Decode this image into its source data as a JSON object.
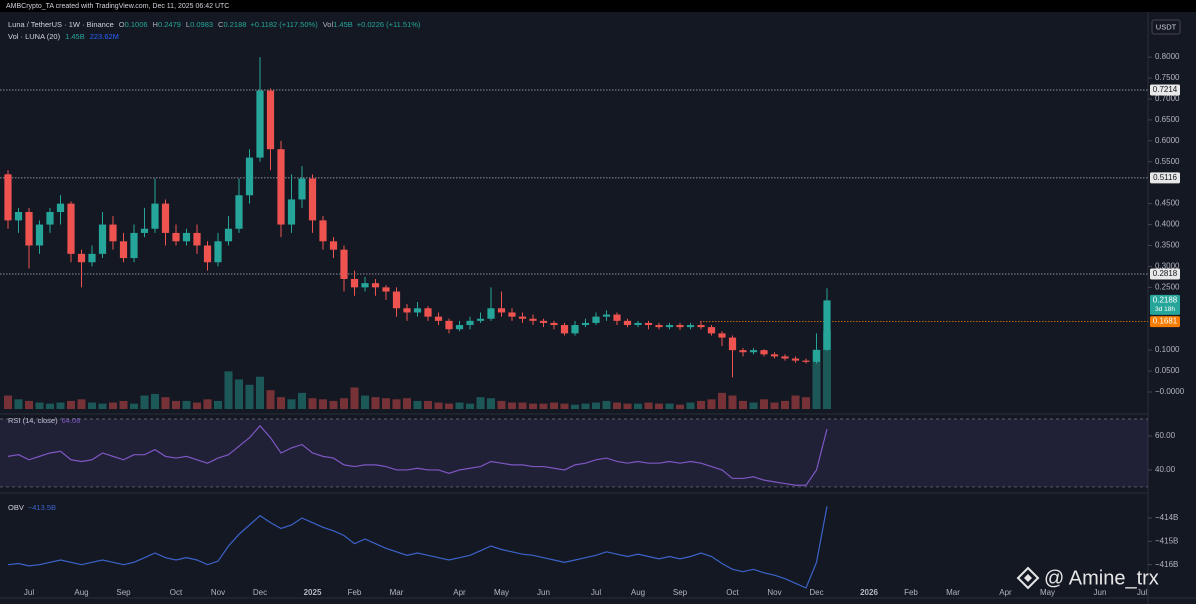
{
  "header": {
    "credit": "AMBCrypto_TA created with TradingView.com, Dec 11, 2025 06:42 UTC",
    "symbol": "Luna / TetherUS · 1W · Binance",
    "ohlc_labels": [
      "O",
      "H",
      "L",
      "C"
    ],
    "change": "+0.1182 (+117.50%)",
    "vol_label": "Vol",
    "vol_change": "+0.0226 (+11.51%)",
    "watermark": "@ Amine_trx"
  },
  "chart_data": [
    {
      "type": "candlestick",
      "currency": "USDT",
      "up_color": "#26a69a",
      "down_color": "#ef5350",
      "categories": [
        null,
        null,
        "Jul",
        null,
        null,
        null,
        null,
        "Aug",
        null,
        null,
        null,
        "Sep",
        null,
        null,
        null,
        null,
        "Oct",
        null,
        null,
        null,
        "Nov",
        null,
        null,
        null,
        "Dec",
        null,
        null,
        null,
        null,
        "2025",
        null,
        null,
        null,
        "Feb",
        null,
        null,
        null,
        "Mar",
        null,
        null,
        null,
        null,
        null,
        "Apr",
        null,
        null,
        null,
        "May",
        null,
        null,
        null,
        "Jun",
        null,
        null,
        null,
        null,
        "Jul",
        null,
        null,
        null,
        "Aug",
        null,
        null,
        null,
        "Sep",
        null,
        null,
        null,
        null,
        "Oct",
        null,
        null,
        null,
        "Nov",
        null,
        null,
        null,
        "Dec",
        null,
        null,
        null,
        null,
        "2026",
        null,
        null,
        null,
        "Feb",
        null,
        null,
        null,
        "Mar",
        null,
        null,
        null,
        null,
        "Apr",
        null,
        null,
        null,
        "May",
        null,
        null,
        null,
        null,
        "Jun",
        null,
        null,
        null,
        "Jul"
      ],
      "open": [
        0.52,
        0.41,
        0.43,
        0.35,
        0.4,
        0.43,
        0.45,
        0.33,
        0.31,
        0.33,
        0.4,
        0.36,
        0.32,
        0.38,
        0.39,
        0.45,
        0.38,
        0.36,
        0.38,
        0.35,
        0.31,
        0.36,
        0.39,
        0.47,
        0.56,
        0.72,
        0.58,
        0.4,
        0.46,
        0.51,
        0.41,
        0.36,
        0.34,
        0.27,
        0.25,
        0.26,
        0.25,
        0.24,
        0.2,
        0.19,
        0.2,
        0.18,
        0.17,
        0.15,
        0.16,
        0.17,
        0.175,
        0.2,
        0.19,
        0.18,
        0.175,
        0.17,
        0.165,
        0.16,
        0.14,
        0.16,
        0.165,
        0.18,
        0.185,
        0.17,
        0.16,
        0.165,
        0.16,
        0.155,
        0.16,
        0.155,
        0.16,
        0.155,
        0.14,
        0.13,
        0.1,
        0.095,
        0.1,
        0.09,
        0.085,
        0.08,
        0.075,
        0.072,
        0.1006,
        null,
        null,
        null,
        null,
        null,
        null,
        null,
        null,
        null,
        null,
        null,
        null,
        null,
        null,
        null,
        null,
        null,
        null,
        null,
        null,
        null,
        null,
        null,
        null,
        null,
        null,
        null,
        null,
        null,
        null
      ],
      "high": [
        0.53,
        0.44,
        0.44,
        0.41,
        0.44,
        0.47,
        0.455,
        0.34,
        0.35,
        0.43,
        0.42,
        0.38,
        0.4,
        0.44,
        0.51,
        0.46,
        0.4,
        0.39,
        0.4,
        0.36,
        0.38,
        0.42,
        0.51,
        0.58,
        0.8,
        0.725,
        0.6,
        0.52,
        0.54,
        0.52,
        0.42,
        0.37,
        0.35,
        0.29,
        0.275,
        0.27,
        0.255,
        0.25,
        0.21,
        0.215,
        0.205,
        0.19,
        0.175,
        0.17,
        0.18,
        0.19,
        0.25,
        0.24,
        0.2,
        0.19,
        0.185,
        0.175,
        0.17,
        0.165,
        0.17,
        0.175,
        0.19,
        0.195,
        0.19,
        0.175,
        0.17,
        0.17,
        0.165,
        0.165,
        0.165,
        0.165,
        0.17,
        0.16,
        0.145,
        0.135,
        0.105,
        0.105,
        0.102,
        0.095,
        0.09,
        0.085,
        0.08,
        0.14,
        0.2479,
        null,
        null,
        null,
        null,
        null,
        null,
        null,
        null,
        null,
        null,
        null,
        null,
        null,
        null,
        null,
        null,
        null,
        null,
        null,
        null,
        null,
        null,
        null,
        null,
        null,
        null,
        null,
        null,
        null,
        null
      ],
      "low": [
        0.39,
        0.38,
        0.295,
        0.33,
        0.38,
        0.4,
        0.31,
        0.25,
        0.3,
        0.32,
        0.34,
        0.31,
        0.31,
        0.37,
        0.38,
        0.35,
        0.35,
        0.35,
        0.33,
        0.29,
        0.3,
        0.35,
        0.38,
        0.45,
        0.55,
        0.53,
        0.37,
        0.38,
        0.44,
        0.38,
        0.34,
        0.32,
        0.24,
        0.23,
        0.24,
        0.23,
        0.22,
        0.18,
        0.17,
        0.18,
        0.17,
        0.16,
        0.14,
        0.145,
        0.15,
        0.165,
        0.17,
        0.18,
        0.17,
        0.165,
        0.16,
        0.155,
        0.15,
        0.135,
        0.135,
        0.155,
        0.16,
        0.17,
        0.16,
        0.155,
        0.155,
        0.15,
        0.15,
        0.15,
        0.148,
        0.15,
        0.15,
        0.135,
        0.11,
        0.035,
        0.085,
        0.09,
        0.085,
        0.08,
        0.075,
        0.07,
        0.068,
        0.068,
        0.0983,
        null,
        null,
        null,
        null,
        null,
        null,
        null,
        null,
        null,
        null,
        null,
        null,
        null,
        null,
        null,
        null,
        null,
        null,
        null,
        null,
        null,
        null,
        null,
        null,
        null,
        null,
        null,
        null,
        null,
        null
      ],
      "close": [
        0.41,
        0.43,
        0.35,
        0.4,
        0.43,
        0.45,
        0.33,
        0.31,
        0.33,
        0.4,
        0.36,
        0.32,
        0.38,
        0.39,
        0.45,
        0.38,
        0.36,
        0.38,
        0.35,
        0.31,
        0.36,
        0.39,
        0.47,
        0.56,
        0.72,
        0.58,
        0.4,
        0.46,
        0.51,
        0.41,
        0.36,
        0.34,
        0.27,
        0.25,
        0.26,
        0.25,
        0.24,
        0.2,
        0.19,
        0.2,
        0.18,
        0.17,
        0.15,
        0.16,
        0.17,
        0.175,
        0.2,
        0.19,
        0.18,
        0.175,
        0.17,
        0.165,
        0.16,
        0.14,
        0.16,
        0.165,
        0.18,
        0.185,
        0.17,
        0.16,
        0.165,
        0.16,
        0.155,
        0.16,
        0.155,
        0.16,
        0.155,
        0.14,
        0.13,
        0.1,
        0.095,
        0.1,
        0.09,
        0.085,
        0.08,
        0.075,
        0.072,
        0.1006,
        0.2188,
        null,
        null,
        null,
        null,
        null,
        null,
        null,
        null,
        null,
        null,
        null,
        null,
        null,
        null,
        null,
        null,
        null,
        null,
        null,
        null,
        null,
        null,
        null,
        null,
        null,
        null,
        null,
        null,
        null,
        null
      ],
      "ylim": [
        -0.043,
        0.903
      ],
      "yticks": [
        {
          "value": 0.8,
          "label": "0.8000"
        },
        {
          "value": 0.75,
          "label": "0.7500"
        },
        {
          "value": 0.7,
          "label": "0.7000"
        },
        {
          "value": 0.65,
          "label": "0.6500"
        },
        {
          "value": 0.6,
          "label": "0.6000"
        },
        {
          "value": 0.55,
          "label": "0.5500"
        },
        {
          "value": 0.45,
          "label": "0.4500"
        },
        {
          "value": 0.4,
          "label": "0.4000"
        },
        {
          "value": 0.35,
          "label": "0.3500"
        },
        {
          "value": 0.3,
          "label": "0.3000"
        },
        {
          "value": 0.25,
          "label": "0.2500"
        },
        {
          "value": 0.1,
          "label": "0.1000"
        },
        {
          "value": 0.05,
          "label": "0.0500"
        },
        {
          "value": 0,
          "label": "−0.0000"
        }
      ],
      "levels": [
        0.7214,
        0.5116,
        0.2818
      ],
      "marker_level": 0.1681,
      "countdown": "3d 18h"
    },
    {
      "type": "bar",
      "title": "Vol · LUNA (20)",
      "last_value_label": "1.45B",
      "ma_value_label": "223.62M",
      "values": [
        0.25,
        0.18,
        0.15,
        0.12,
        0.1,
        0.12,
        0.15,
        0.18,
        0.12,
        0.1,
        0.12,
        0.15,
        0.1,
        0.25,
        0.28,
        0.22,
        0.15,
        0.15,
        0.12,
        0.18,
        0.15,
        0.7,
        0.55,
        0.45,
        0.6,
        0.35,
        0.22,
        0.18,
        0.3,
        0.2,
        0.18,
        0.15,
        0.2,
        0.4,
        0.25,
        0.22,
        0.2,
        0.18,
        0.2,
        0.15,
        0.15,
        0.12,
        0.1,
        0.12,
        0.1,
        0.22,
        0.2,
        0.15,
        0.12,
        0.12,
        0.1,
        0.1,
        0.12,
        0.1,
        0.08,
        0.1,
        0.12,
        0.15,
        0.12,
        0.1,
        0.1,
        0.12,
        0.1,
        0.1,
        0.08,
        0.12,
        0.15,
        0.18,
        0.3,
        0.25,
        0.15,
        0.12,
        0.18,
        0.12,
        0.15,
        0.25,
        0.22,
        1.1,
        1.45
      ]
    },
    {
      "type": "line",
      "title": "RSI (14, close)",
      "color": "#7e57c2",
      "values": [
        48,
        49,
        46,
        48,
        50,
        51,
        46,
        45,
        46,
        50,
        48,
        46,
        49,
        49,
        52,
        48,
        47,
        48,
        46,
        44,
        47,
        49,
        54,
        59,
        66,
        59,
        50,
        53,
        55,
        50,
        48,
        47,
        43,
        42,
        43,
        43,
        42,
        40,
        40,
        41,
        40,
        40,
        38,
        40,
        41,
        42,
        45,
        44,
        43,
        43,
        42,
        42,
        41,
        40,
        43,
        44,
        46,
        47,
        45,
        44,
        45,
        44,
        44,
        45,
        44,
        45,
        44,
        42,
        40,
        35,
        35,
        36,
        34,
        33,
        32,
        31,
        31,
        40,
        64.08
      ],
      "ylim": [
        28.2,
        70.6
      ],
      "yticks": [
        {
          "value": 60,
          "label": "60.00"
        },
        {
          "value": 40,
          "label": "40.00"
        }
      ],
      "bands": [
        30,
        70
      ]
    },
    {
      "type": "line",
      "title": "OBV",
      "color": "#3b63c9",
      "last_value_label": "−413.5B",
      "values": [
        -416.0,
        -415.95,
        -416.05,
        -416.0,
        -415.9,
        -415.8,
        -415.9,
        -416.0,
        -415.9,
        -415.8,
        -415.9,
        -416.0,
        -415.9,
        -415.7,
        -415.5,
        -415.7,
        -415.8,
        -415.7,
        -415.8,
        -416.0,
        -415.85,
        -415.2,
        -414.7,
        -414.3,
        -413.9,
        -414.2,
        -414.45,
        -414.3,
        -414.0,
        -414.2,
        -414.4,
        -414.55,
        -414.75,
        -415.1,
        -414.9,
        -415.1,
        -415.3,
        -415.45,
        -415.6,
        -415.5,
        -415.6,
        -415.7,
        -415.8,
        -415.7,
        -415.6,
        -415.4,
        -415.2,
        -415.35,
        -415.45,
        -415.55,
        -415.6,
        -415.7,
        -415.8,
        -415.9,
        -415.8,
        -415.7,
        -415.6,
        -415.45,
        -415.55,
        -415.65,
        -415.55,
        -415.65,
        -415.75,
        -415.65,
        -415.75,
        -415.65,
        -415.5,
        -415.65,
        -415.95,
        -416.2,
        -416.3,
        -416.2,
        -416.35,
        -416.45,
        -416.6,
        -416.8,
        -417.0,
        -415.9,
        -413.5
      ],
      "ylim": [
        -417.3,
        -413.1
      ],
      "yticks": [
        {
          "value": -414,
          "label": "−414B"
        },
        {
          "value": -415,
          "label": "−415B"
        },
        {
          "value": -416,
          "label": "−416B"
        }
      ]
    }
  ]
}
